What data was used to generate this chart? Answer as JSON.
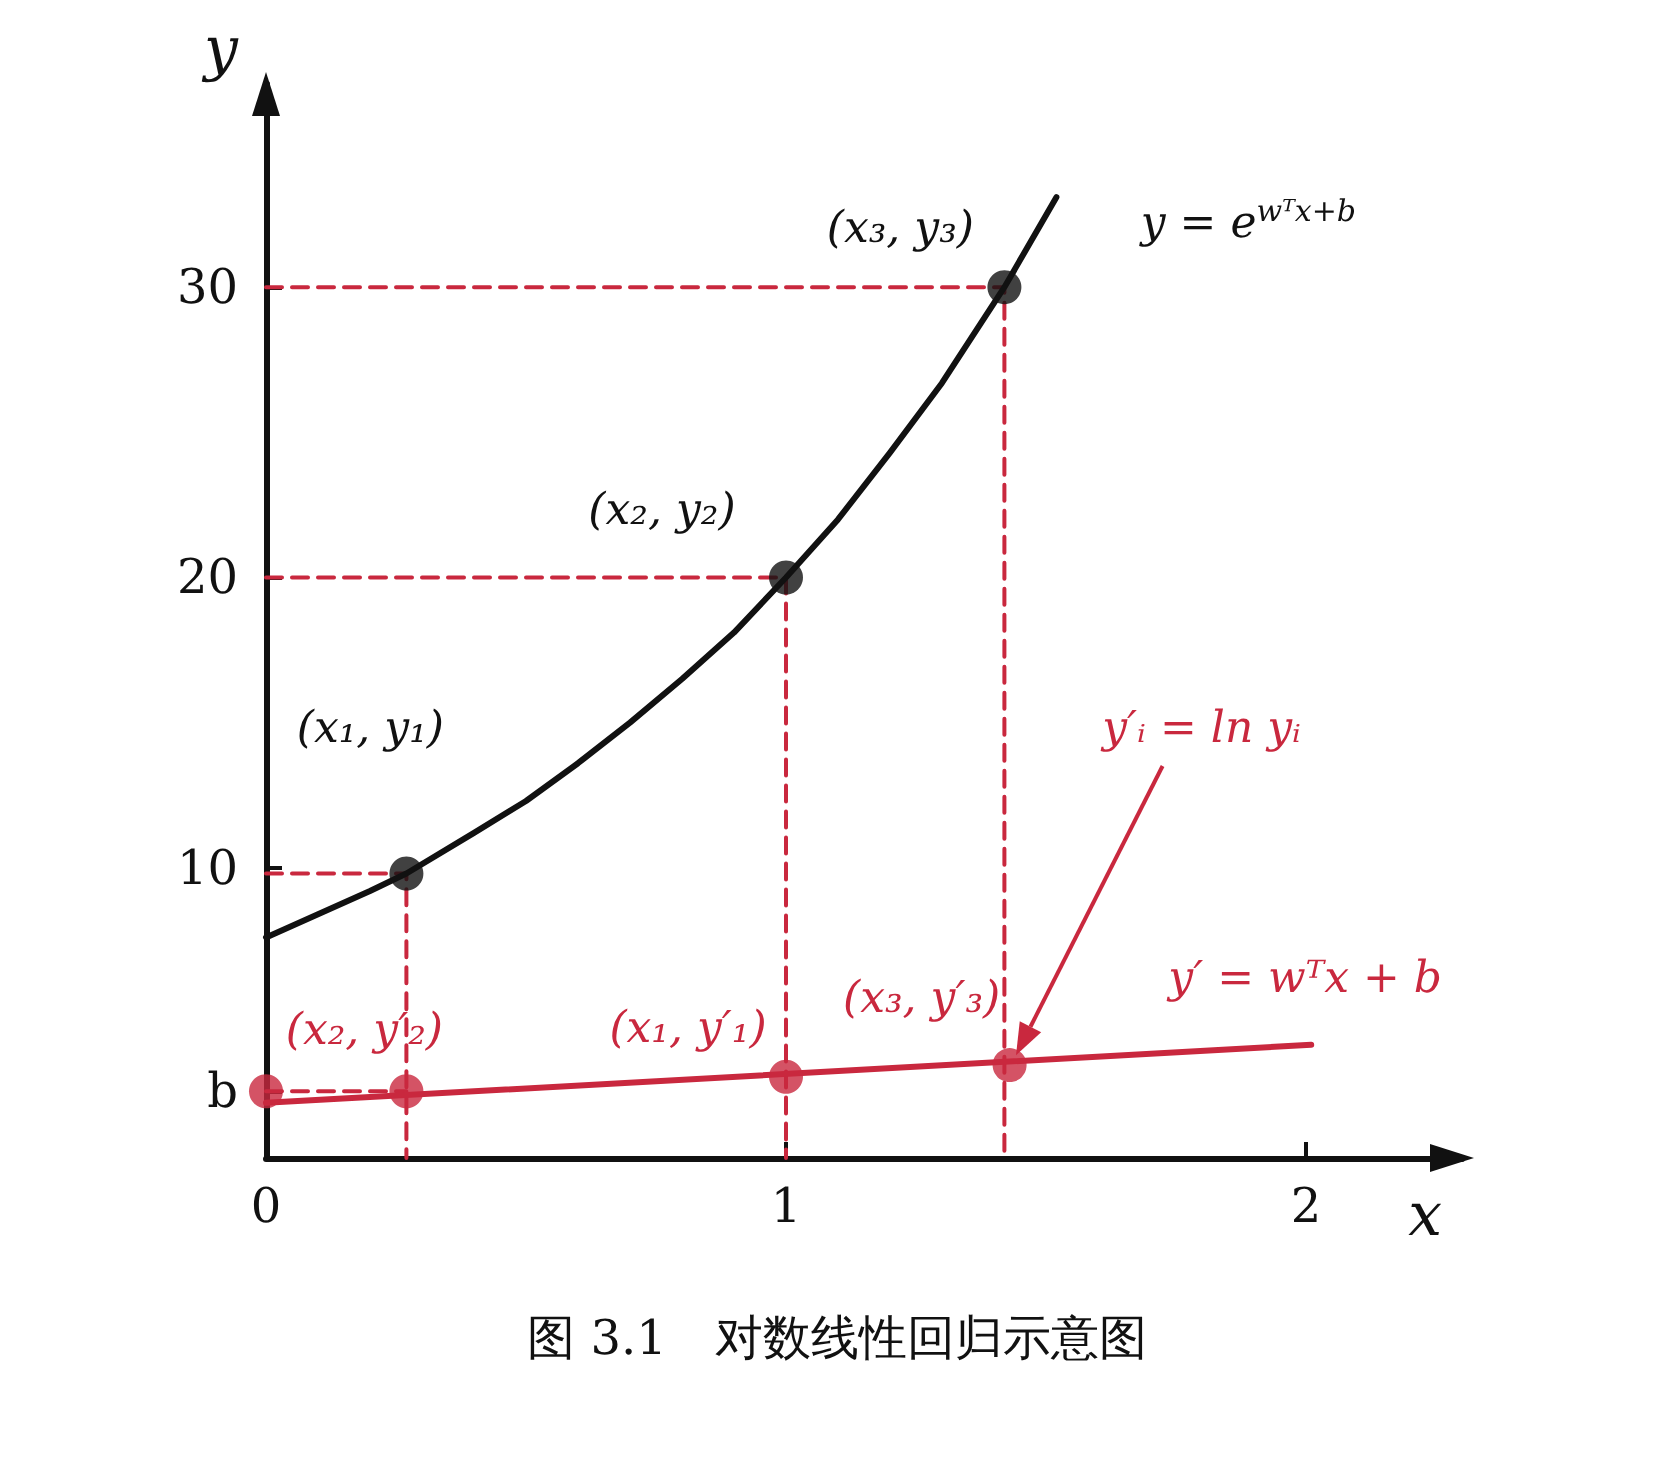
{
  "chart_data": {
    "type": "line",
    "title": "图 3.1　对数线性回归示意图",
    "xlabel": "x",
    "ylabel": "y",
    "xlim": [
      0,
      2.3
    ],
    "ylim": [
      0,
      37
    ],
    "xticks": [
      0,
      1,
      2
    ],
    "yticks": [
      {
        "value": 2.3,
        "label": "b"
      },
      10,
      20,
      30
    ],
    "series": [
      {
        "type": "line",
        "color": "#c9283e",
        "line_style": "dashed",
        "marker": "none",
        "x": [
          0,
          0.27,
          0.27
        ],
        "values": [
          9.8,
          9.8,
          0
        ]
      },
      {
        "type": "line",
        "color": "#c9283e",
        "line_style": "dashed",
        "marker": "none",
        "x": [
          0,
          1.0,
          1.0
        ],
        "values": [
          20,
          20,
          0
        ]
      },
      {
        "type": "line",
        "color": "#c9283e",
        "line_style": "dashed",
        "marker": "none",
        "x": [
          0,
          1.42,
          1.42
        ],
        "values": [
          30,
          30,
          0
        ]
      },
      {
        "type": "line",
        "color": "#c9283e",
        "line_style": "dashed",
        "marker": "none",
        "x": [
          0,
          0.27
        ],
        "values": [
          2.3,
          2.3
        ]
      },
      {
        "color": "#111111",
        "line_style": "solid",
        "marker": "none",
        "x": [
          0,
          0.1,
          0.2,
          0.27,
          0.4,
          0.5,
          0.6,
          0.7,
          0.8,
          0.9,
          1.0,
          1.1,
          1.2,
          1.3,
          1.42,
          1.52
        ],
        "values": [
          7.6,
          8.4,
          9.2,
          9.8,
          11.2,
          12.3,
          13.6,
          15.0,
          16.5,
          18.1,
          20,
          22.0,
          24.3,
          26.7,
          30,
          33.1
        ]
      },
      {
        "color": "#c9283e",
        "line_style": "solid",
        "marker": "none",
        "x": [
          0,
          2.01
        ],
        "values": [
          1.9,
          3.9
        ]
      },
      {
        "type": "scatter",
        "color": "#111111",
        "marker": "circle",
        "x": [
          0.27,
          1.0,
          1.42
        ],
        "values": [
          9.8,
          20,
          30
        ]
      },
      {
        "type": "scatter",
        "color": "#c9283e",
        "marker": "circle",
        "x": [
          0,
          0.27,
          1.0,
          1.43
        ],
        "values": [
          2.3,
          2.3,
          2.8,
          3.2
        ]
      }
    ],
    "annotations": [
      {
        "text": "(x₁, y₁)",
        "x": 0.27,
        "y": 9.8
      },
      {
        "text": "(x₂, y₂)",
        "x": 1.0,
        "y": 20
      },
      {
        "text": "(x₃, y₃)",
        "x": 1.42,
        "y": 30
      },
      {
        "text": "y = e$^{wᵀx+b}$",
        "x": 1.52,
        "y": 33.1
      },
      "y′ᵢ = ln yᵢ",
      {
        "text": "y′ = wᵀx + b",
        "x": 2.01,
        "y": 3.9
      },
      {
        "text": "(x₂, y′₂)",
        "x": 0.27,
        "y": 2.3
      },
      {
        "text": "(x₁, y′₁)",
        "x": 1.0,
        "y": 2.8
      },
      {
        "text": "(x₃, y′₃)",
        "x": 1.43,
        "y": 3.2
      }
    ]
  }
}
